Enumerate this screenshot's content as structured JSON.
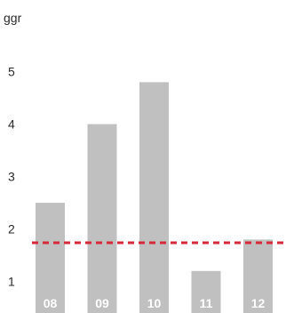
{
  "chart_data": {
    "type": "bar",
    "ylabel": "ggr",
    "categories": [
      "08",
      "09",
      "10",
      "11",
      "12"
    ],
    "values": [
      2.5,
      4.0,
      4.8,
      1.2,
      1.8
    ],
    "ylim": [
      0.4,
      5
    ],
    "yticks": [
      "1",
      "2",
      "3",
      "4",
      "5"
    ],
    "reference_line": {
      "value": 1.74,
      "style": "dashed"
    },
    "grid": false,
    "legend": "none"
  },
  "colors": {
    "bar": "#c0c0c0",
    "reference_line": "#d62a3a",
    "bar_label": "#ffffff",
    "text": "#2b2b2b"
  }
}
